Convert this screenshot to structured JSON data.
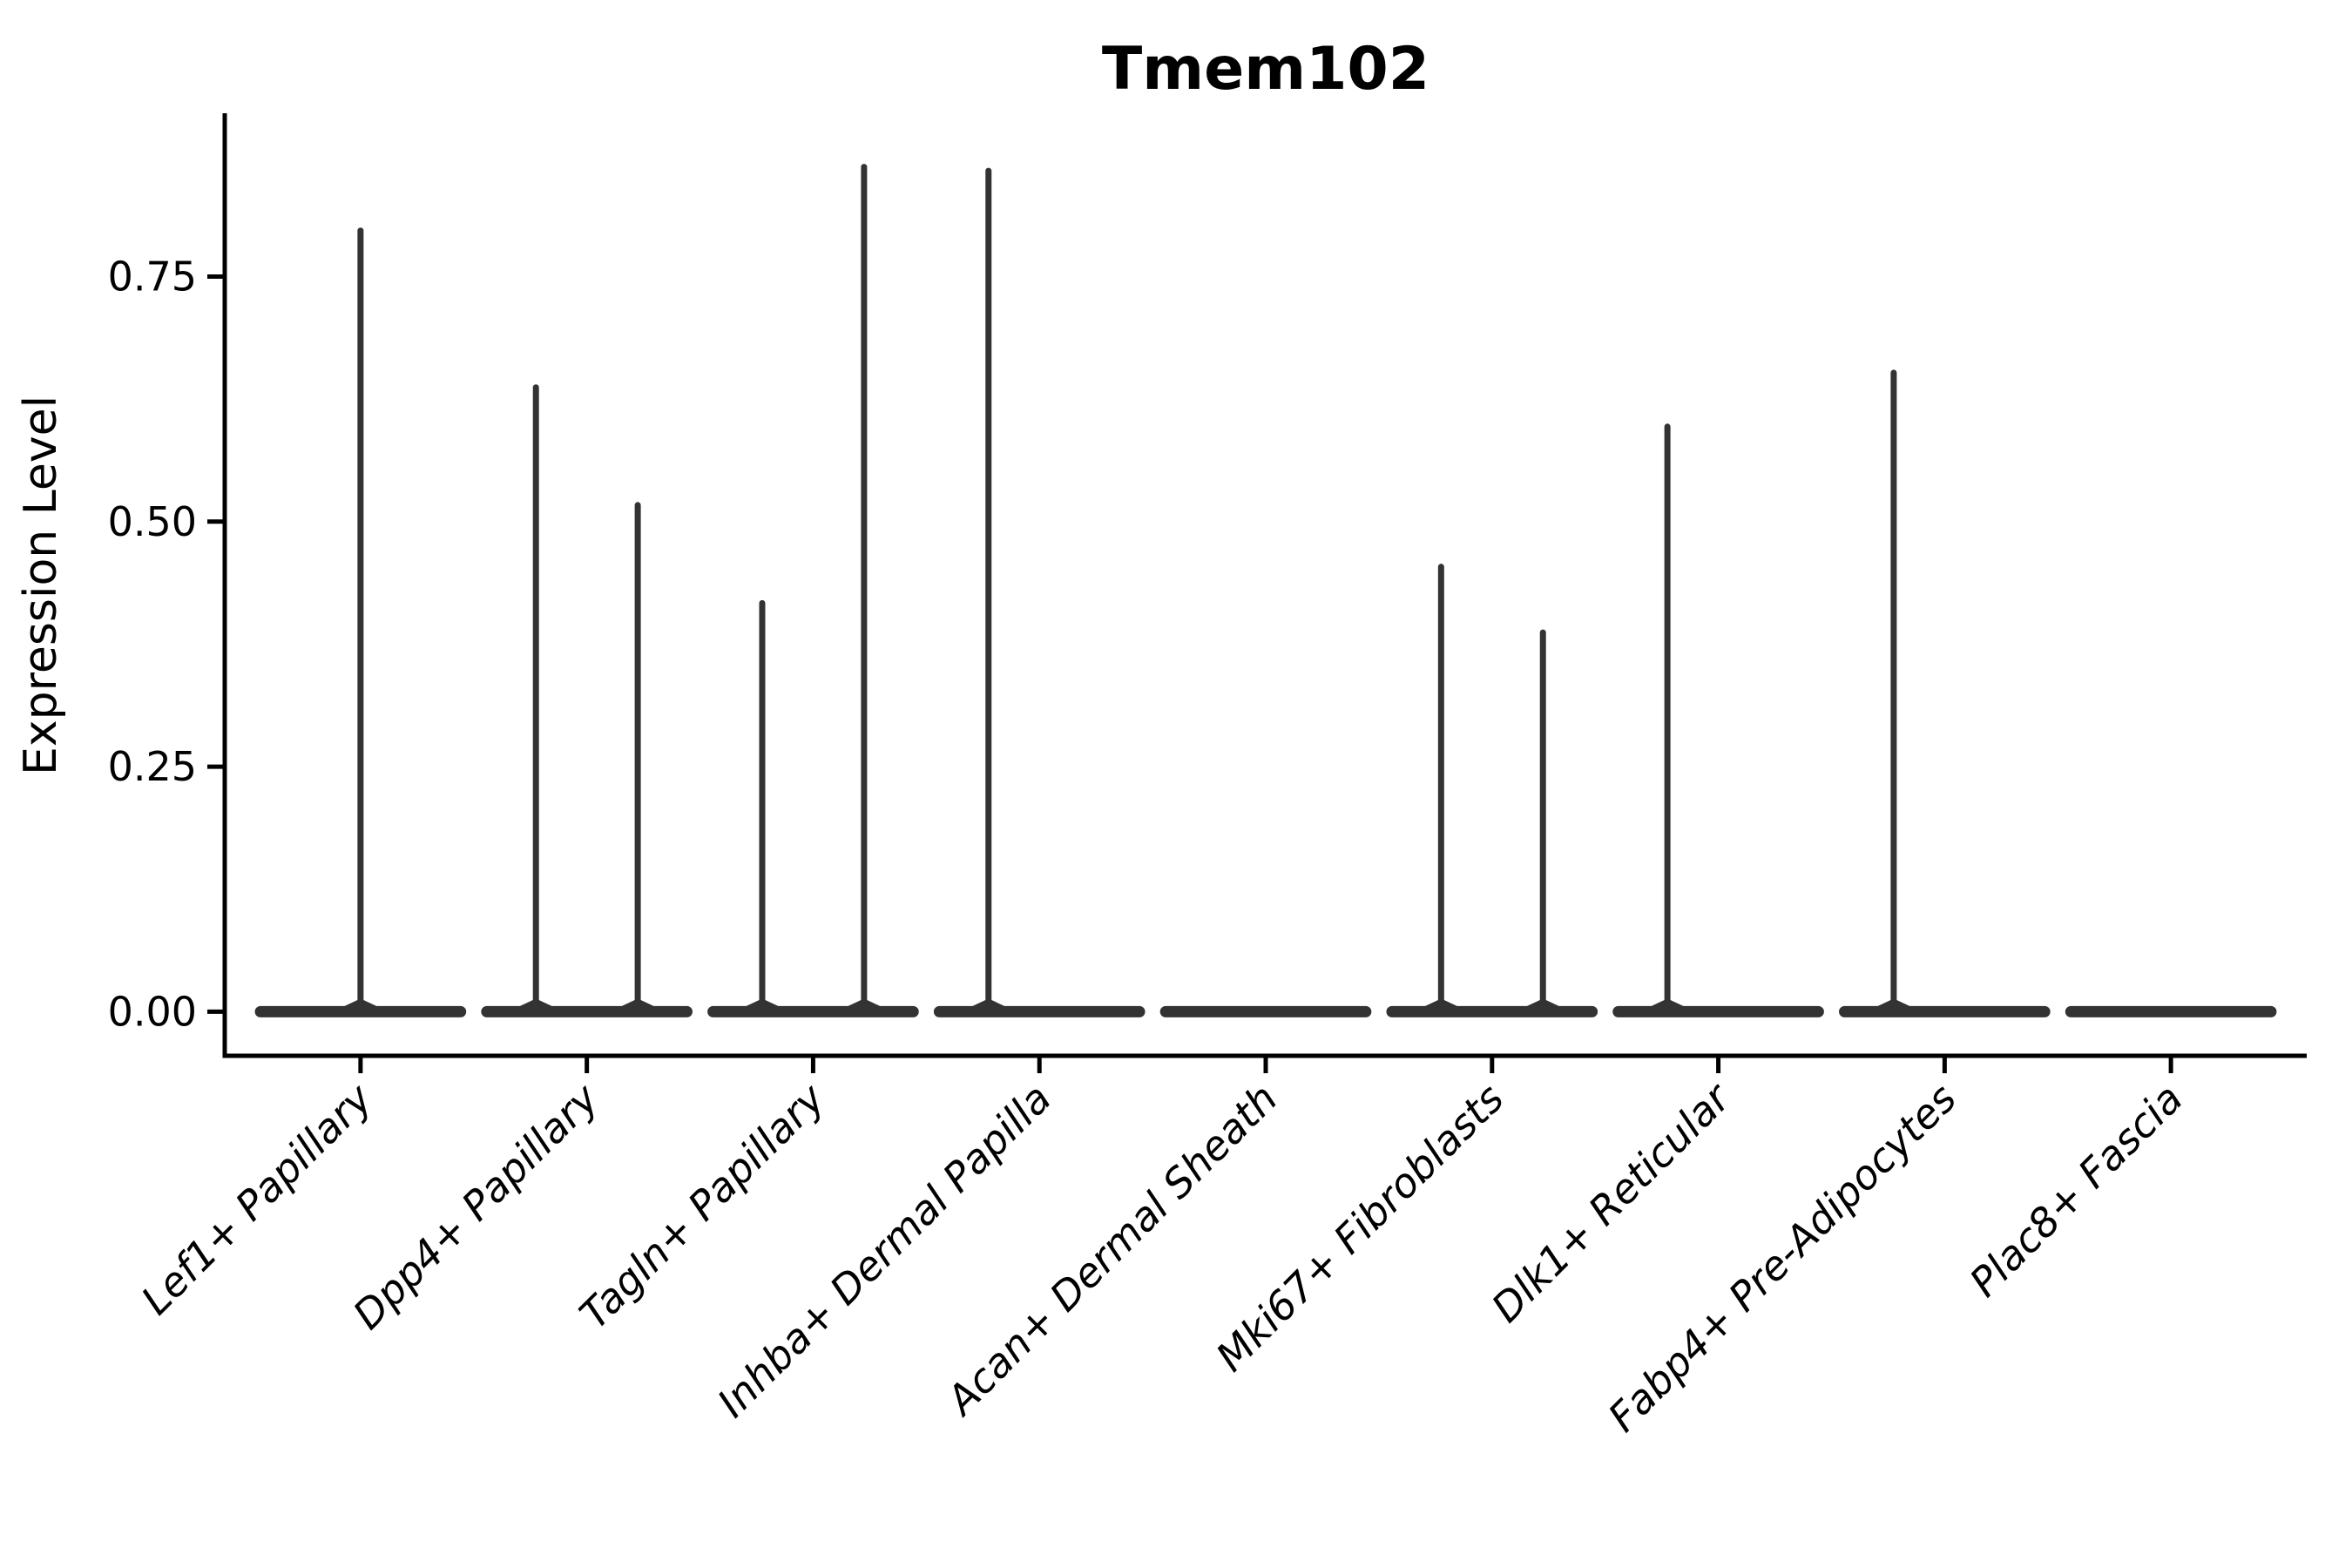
{
  "colors": {
    "background": "#ffffff",
    "violin": "#333333",
    "axis": "#000000",
    "text": "#000000"
  },
  "chart_data": {
    "type": "violin",
    "title": "Tmem102",
    "xlabel": "",
    "ylabel": "Expression Level",
    "grid": false,
    "legend": "none",
    "ylim": [
      -0.045,
      0.914
    ],
    "ytick_values": [
      0.0,
      0.25,
      0.5,
      0.75
    ],
    "ytick_labels": [
      "0.00",
      "0.25",
      "0.50",
      "0.75"
    ],
    "categories": [
      "Lef1+ Papillary",
      "Dpp4+ Papillary",
      "Tagln+ Papillary",
      "Inhba+ Dermal Papilla",
      "Acan+ Dermal Sheath",
      "Mki67+ Fibroblasts",
      "Dlk1+ Reticular",
      "Fabp4+ Pre-Adipocytes",
      "Plac8+ Fascia"
    ],
    "violins": [
      {
        "category": "Lef1+ Papillary",
        "base_value": 0.0,
        "spikes": [
          {
            "dx": 0.0,
            "max": 0.8
          }
        ]
      },
      {
        "category": "Dpp4+ Papillary",
        "base_value": 0.0,
        "spikes": [
          {
            "dx": -0.225,
            "max": 0.64
          },
          {
            "dx": 0.225,
            "max": 0.52
          }
        ]
      },
      {
        "category": "Tagln+ Papillary",
        "base_value": 0.0,
        "spikes": [
          {
            "dx": -0.225,
            "max": 0.42
          },
          {
            "dx": 0.225,
            "max": 0.865
          }
        ]
      },
      {
        "category": "Inhba+ Dermal Papilla",
        "base_value": 0.0,
        "spikes": [
          {
            "dx": -0.225,
            "max": 0.861
          }
        ]
      },
      {
        "category": "Acan+ Dermal Sheath",
        "base_value": 0.0,
        "spikes": []
      },
      {
        "category": "Mki67+ Fibroblasts",
        "base_value": 0.0,
        "spikes": [
          {
            "dx": -0.225,
            "max": 0.457
          },
          {
            "dx": 0.225,
            "max": 0.39
          }
        ]
      },
      {
        "category": "Dlk1+ Reticular",
        "base_value": 0.0,
        "spikes": [
          {
            "dx": -0.225,
            "max": 0.6
          }
        ]
      },
      {
        "category": "Fabp4+ Pre-Adipocytes",
        "base_value": 0.0,
        "spikes": [
          {
            "dx": -0.225,
            "max": 0.655
          }
        ]
      },
      {
        "category": "Plac8+ Fascia",
        "base_value": 0.0,
        "spikes": []
      }
    ]
  }
}
